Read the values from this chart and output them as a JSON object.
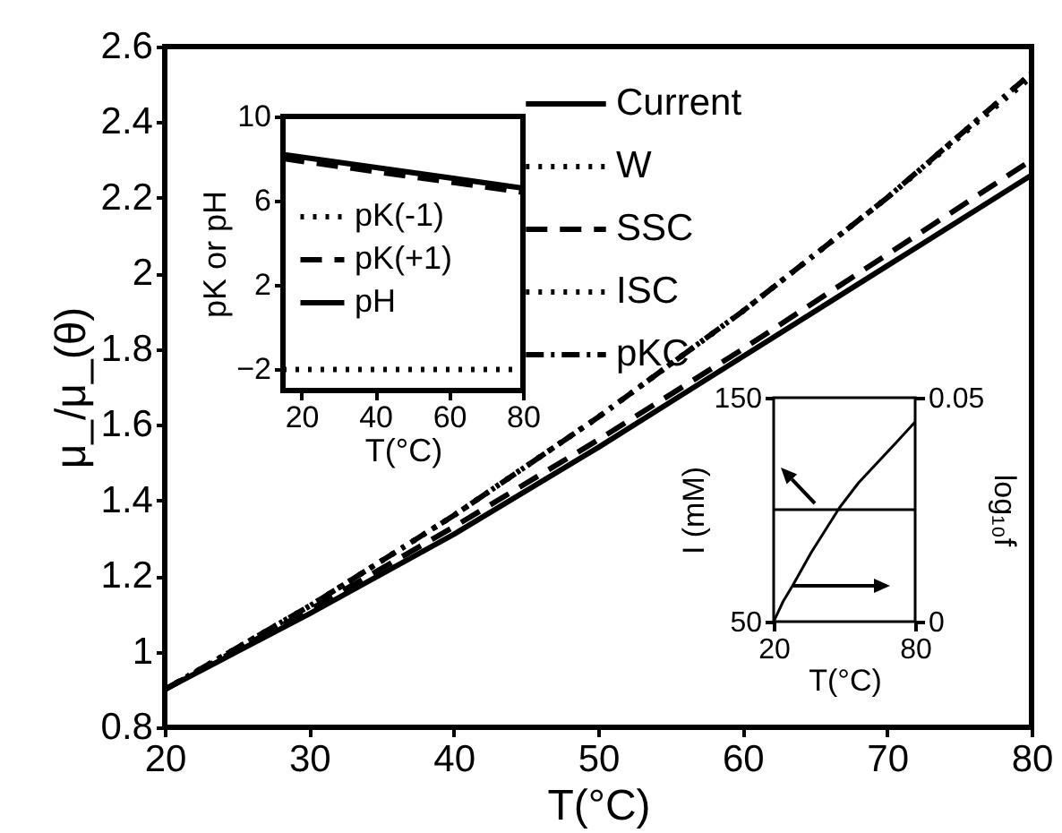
{
  "chart_data": [
    {
      "type": "line",
      "xlabel": "T(°C)",
      "ylabel": "μ_/μ_(θ)",
      "x": [
        20,
        30,
        40,
        50,
        60,
        70,
        80
      ],
      "series": [
        {
          "name": "Current",
          "color": "#000000",
          "line_style": "solid",
          "values": [
            0.9,
            1.1,
            1.31,
            1.54,
            1.78,
            2.02,
            2.26
          ]
        },
        {
          "name": "W",
          "color": "#000000",
          "line_style": "dotted",
          "values": [
            0.9,
            1.12,
            1.36,
            1.62,
            1.9,
            2.2,
            2.53
          ]
        },
        {
          "name": "SSC",
          "color": "#000000",
          "line_style": "dashed",
          "values": [
            0.9,
            1.11,
            1.33,
            1.56,
            1.8,
            2.05,
            2.3
          ]
        },
        {
          "name": "ISC",
          "color": "#000000",
          "line_style": "dotted",
          "values": [
            0.9,
            1.12,
            1.36,
            1.62,
            1.9,
            2.2,
            2.52
          ]
        },
        {
          "name": "pKC",
          "color": "#000000",
          "line_style": "dashdot",
          "values": [
            0.9,
            1.12,
            1.36,
            1.62,
            1.9,
            2.2,
            2.53
          ]
        }
      ],
      "xlim": [
        20,
        80
      ],
      "xticks": [
        20,
        30,
        40,
        50,
        60,
        70,
        80
      ],
      "ylim": [
        0.8,
        2.6
      ],
      "yticks": [
        0.8,
        1,
        1.2,
        1.4,
        1.6,
        1.8,
        2,
        2.2,
        2.4,
        2.6
      ],
      "legend": "top right",
      "grid": false
    },
    {
      "type": "line",
      "xlabel": "T(°C)",
      "ylabel": "pK or pH",
      "x": [
        15,
        80
      ],
      "series": [
        {
          "name": "pK(-1)",
          "color": "#000000",
          "line_style": "dotted",
          "values": [
            -2,
            -2
          ]
        },
        {
          "name": "pK(+1)",
          "color": "#000000",
          "line_style": "dashed",
          "values": [
            8,
            6.4
          ]
        },
        {
          "name": "pH",
          "color": "#000000",
          "line_style": "solid",
          "values": [
            8.2,
            6.6
          ]
        }
      ],
      "xlim": [
        15,
        80
      ],
      "xticks": [
        20,
        40,
        60,
        80
      ],
      "ylim": [
        -3,
        10
      ],
      "yticks": [
        {
          "value": -2,
          "label": "−2"
        },
        2,
        6,
        10
      ],
      "legend": "left",
      "grid": false
    },
    {
      "type": "line",
      "xlabel": "T(°C)",
      "ylabel": "I (mM)",
      "y2label": "log₁₀f",
      "series": [
        {
          "color": "#000000",
          "x": [
            20,
            80
          ],
          "values": [
            100,
            100
          ]
        },
        {
          "color": "#000000",
          "axis": "y2",
          "x": [
            20,
            24,
            28,
            36,
            48,
            56,
            64,
            72,
            80
          ],
          "values": [
            0,
            0.0045,
            0.008,
            0.0155,
            0.0255,
            0.031,
            0.0355,
            0.04,
            0.0446
          ]
        }
      ],
      "xlim": [
        20,
        80
      ],
      "xticks": [
        20,
        80
      ],
      "ylim": [
        50,
        150
      ],
      "yticks": [
        50,
        150
      ],
      "y2lim": [
        0,
        0.05
      ],
      "y2ticks": [
        0,
        0.05
      ],
      "legend": false,
      "grid": false
    }
  ]
}
